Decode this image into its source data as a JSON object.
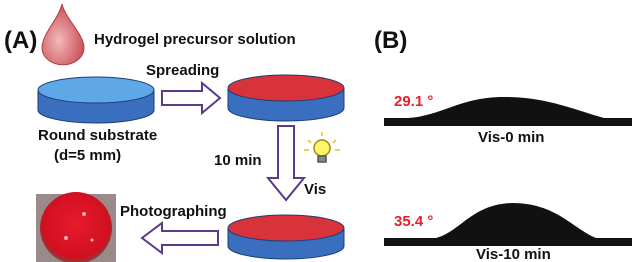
{
  "panel_a": {
    "label": "(A)",
    "precursor": "Hydrogel precursor solution",
    "step1": "Spreading",
    "substrate": "Round substrate",
    "diameter": "(d=5 mm)",
    "time": "10 min",
    "light": "Vis",
    "step3": "Photographing"
  },
  "panel_b": {
    "label": "(B)",
    "drops": [
      {
        "angle": "29.1 °",
        "caption": "Vis-0 min"
      },
      {
        "angle": "35.4 °",
        "caption": "Vis-10 min"
      }
    ]
  }
}
